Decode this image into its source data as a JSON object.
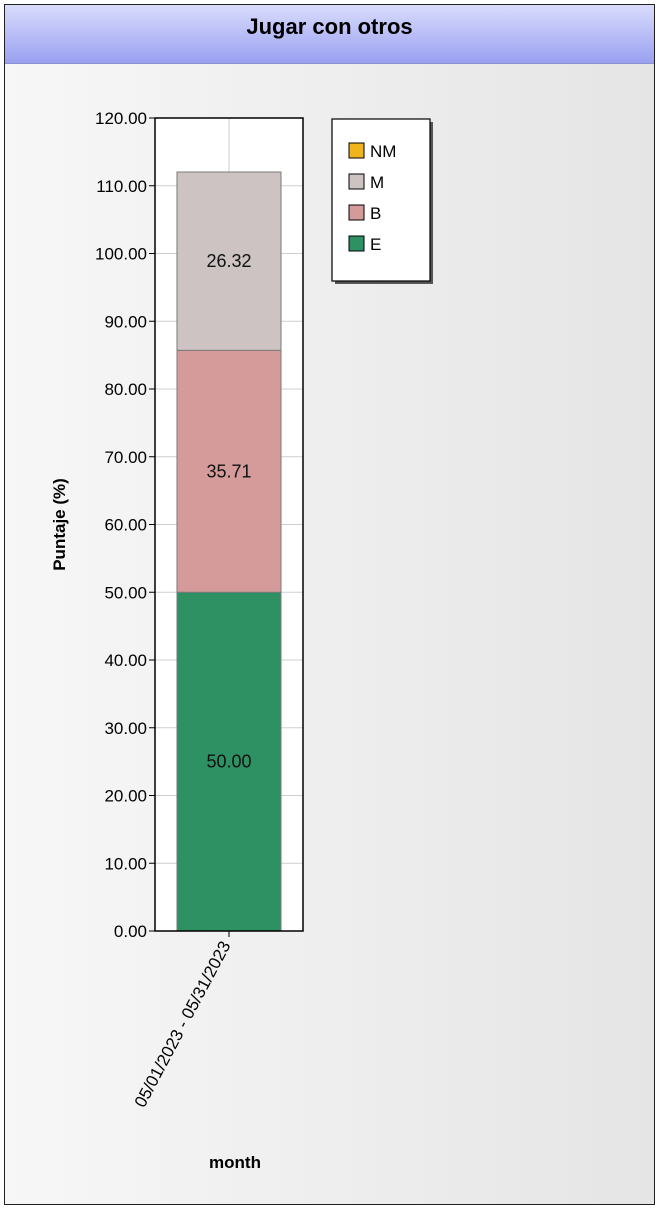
{
  "chart_data": {
    "type": "bar",
    "stacked": true,
    "title": "Jugar con otros",
    "xlabel": "month",
    "ylabel": "Puntaje (%)",
    "ylim": [
      0,
      120
    ],
    "yticks": [
      "0.00",
      "10.00",
      "20.00",
      "30.00",
      "40.00",
      "50.00",
      "60.00",
      "70.00",
      "80.00",
      "90.00",
      "100.00",
      "110.00",
      "120.00"
    ],
    "categories": [
      "05/01/2023 - 05/31/2023"
    ],
    "series": [
      {
        "name": "E",
        "color": "#2e9163",
        "values": [
          50.0
        ],
        "label": "50.00"
      },
      {
        "name": "B",
        "color": "#d59a9a",
        "values": [
          35.71
        ],
        "label": "35.71"
      },
      {
        "name": "M",
        "color": "#cdc3c3",
        "values": [
          26.32
        ],
        "label": "26.32"
      },
      {
        "name": "NM",
        "color": "#f0b41c",
        "values": [
          0
        ],
        "label": ""
      }
    ],
    "legend": [
      "NM",
      "M",
      "B",
      "E"
    ],
    "legend_position": "top-right",
    "grid": true
  }
}
